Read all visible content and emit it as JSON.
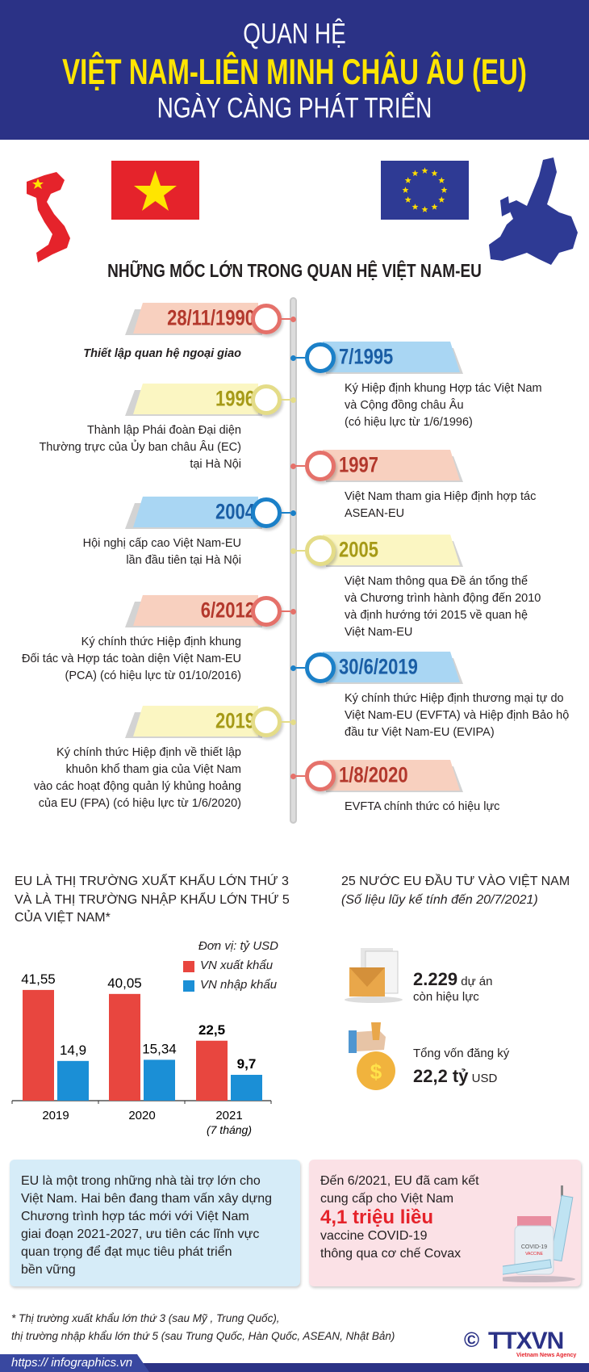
{
  "header": {
    "line1": "QUAN HỆ",
    "line2": "VIỆT NAM-LIÊN MINH CHÂU ÂU (EU)",
    "line3": "NGÀY CÀNG PHÁT TRIỂN"
  },
  "section_title": "NHỮNG MỐC LỚN TRONG QUAN HỆ VIỆT NAM-EU",
  "colors": {
    "header_bg": "#2b3286",
    "title_yellow": "#ffe500",
    "red": "#e5716a",
    "blue": "#1b80c8",
    "yellow": "#e4dc88"
  },
  "timeline": [
    {
      "side": "left",
      "date": "28/11/1990",
      "color": "red",
      "text": [
        "Thiết lập quan hệ ngoại giao"
      ],
      "italic": true
    },
    {
      "side": "right",
      "date": "7/1995",
      "color": "blue",
      "text": [
        "Ký Hiệp định khung Hợp tác Việt Nam",
        "và Cộng đồng châu Âu",
        "(có hiệu lực từ 1/6/1996)"
      ]
    },
    {
      "side": "left",
      "date": "1996",
      "color": "yellow",
      "text": [
        "Thành lập Phái đoàn Đại diện",
        "Thường trực của Ủy ban châu Âu (EC)",
        "tại Hà Nội"
      ]
    },
    {
      "side": "right",
      "date": "1997",
      "color": "red",
      "text": [
        "Việt Nam tham gia Hiệp định hợp tác",
        "ASEAN-EU"
      ]
    },
    {
      "side": "left",
      "date": "2004",
      "color": "blue",
      "text": [
        "Hội nghị cấp cao Việt Nam-EU",
        "lần đầu tiên tại Hà Nội"
      ]
    },
    {
      "side": "right",
      "date": "2005",
      "color": "yellow",
      "text": [
        "Việt Nam thông qua Đề án tổng thể",
        "và Chương trình hành động đến 2010",
        "và định hướng tới 2015 về quan hệ",
        "Việt Nam-EU"
      ]
    },
    {
      "side": "left",
      "date": "6/2012",
      "color": "red",
      "text": [
        "Ký chính thức Hiệp định khung",
        "Đối tác và Hợp tác toàn diện Việt Nam-EU",
        "(PCA) (có hiệu lực từ 01/10/2016)"
      ]
    },
    {
      "side": "right",
      "date": "30/6/2019",
      "color": "blue",
      "text": [
        "Ký chính thức Hiệp định thương mại tự do",
        "Việt Nam-EU (EVFTA) và Hiệp định Bảo hộ",
        "đầu tư Việt Nam-EU (EVIPA)"
      ]
    },
    {
      "side": "left",
      "date": "2019",
      "color": "yellow",
      "text": [
        "Ký chính thức Hiệp định về thiết lập",
        "khuôn khổ tham gia của Việt Nam",
        "vào các hoạt động quản lý khủng hoảng",
        "của EU (FPA) (có hiệu lực từ 1/6/2020)"
      ]
    },
    {
      "side": "right",
      "date": "1/8/2020",
      "color": "red",
      "text": [
        "EVFTA chính thức có hiệu lực"
      ]
    }
  ],
  "trade": {
    "heading": [
      "EU LÀ THỊ TRƯỜNG XUẤT KHẨU LỚN THỨ 3",
      "VÀ LÀ THỊ TRƯỜNG NHẬP KHẨU LỚN THỨ 5",
      "CỦA VIỆT NAM*"
    ]
  },
  "chart_data": {
    "type": "bar",
    "categories": [
      "2019",
      "2020",
      "2021"
    ],
    "category_notes": [
      "",
      "",
      "(7 tháng)"
    ],
    "unit": "Đơn vị: tỷ USD",
    "series": [
      {
        "name": "VN xuất khẩu",
        "color": "#e8463f",
        "values": [
          41.55,
          40.05,
          22.5
        ],
        "labels": [
          "41,55",
          "40,05",
          "22,5"
        ]
      },
      {
        "name": "VN nhập khẩu",
        "color": "#1b8fd6",
        "values": [
          14.9,
          15.34,
          9.7
        ],
        "labels": [
          "14,9",
          "15,34",
          "9,7"
        ]
      }
    ],
    "ylim": [
      0,
      45
    ],
    "grid": false,
    "legend": "top-right"
  },
  "invest": {
    "heading": "25 NƯỚC EU ĐẦU TƯ VÀO VIỆT NAM",
    "subheading": "(Số liệu lũy kế tính đến 20/7/2021)",
    "projects_value": "2.229",
    "projects_unit": "dự án",
    "projects_label": "còn hiệu lực",
    "capital_label": "Tổng vốn đăng ký",
    "capital_value": "22,2 tỷ",
    "capital_unit": "USD"
  },
  "box_left": {
    "text": [
      "EU là một trong những nhà tài trợ lớn cho",
      "Việt Nam. Hai bên đang tham vấn xây dựng",
      "Chương trình hợp tác mới với Việt Nam",
      "giai đoạn 2021-2027, ưu tiên các lĩnh vực",
      "quan trọng để đạt mục tiêu phát triển",
      "bền vững"
    ]
  },
  "box_right": {
    "line1": "Đến 6/2021, EU đã cam kết",
    "line2": "cung cấp cho Việt Nam",
    "highlight": "4,1 triệu liều",
    "line3": "vaccine COVID-19",
    "line4": "thông qua cơ chế Covax",
    "vial_label": "COVID-19",
    "vial_sub": "VACCINE"
  },
  "footnote": [
    "* Thị trường xuất khẩu lớn thứ 3 (sau Mỹ , Trung Quốc),",
    "thị trường nhập khẩu lớn thứ 5 (sau Trung Quốc, Hàn Quốc, ASEAN, Nhật Bản)"
  ],
  "footer": {
    "url": "https:// infographics.vn",
    "logo": "TTXVN",
    "logo_sub": "Vietnam News Agency",
    "copyright": "©"
  }
}
